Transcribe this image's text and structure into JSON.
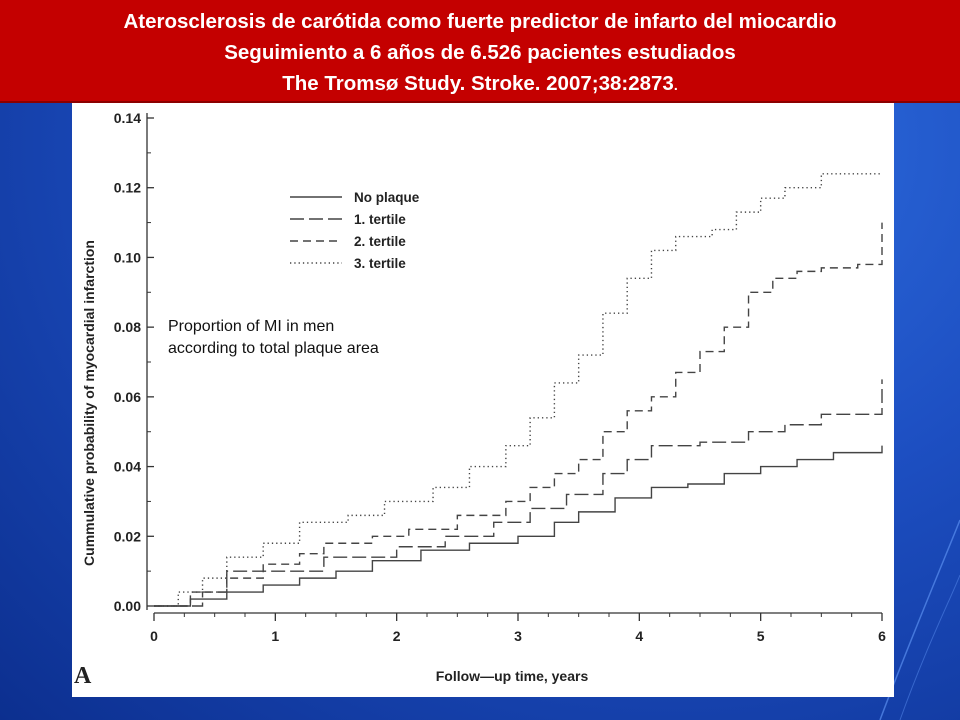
{
  "header": {
    "line1": "Aterosclerosis de carótida  como fuerte predictor de infarto del miocardio",
    "line2": "Seguimiento a 6 años de 6.526 pacientes estudiados",
    "line3": "The Tromsø Study. Stroke. 2007;38:2873",
    "line3_suffix": "."
  },
  "annotation": {
    "line1": "Proportion of MI in men",
    "line2": "according to total plaque area"
  },
  "panel_label": "A",
  "chart_data": {
    "type": "line",
    "step": true,
    "xlabel": "Follow—up time, years",
    "ylabel": "Cummulative probability of myocardial infarction",
    "xlim": [
      0,
      6
    ],
    "ylim": [
      0,
      0.14
    ],
    "xticks": [
      "0",
      "1",
      "2",
      "3",
      "4",
      "5",
      "6"
    ],
    "yticks": [
      "0.00",
      "0.02",
      "0.04",
      "0.06",
      "0.08",
      "0.10",
      "0.12",
      "0.14"
    ],
    "legend_position": "top-left",
    "series": [
      {
        "name": "No plaque",
        "style": "solid",
        "points": [
          [
            0,
            0
          ],
          [
            0.3,
            0.002
          ],
          [
            0.6,
            0.004
          ],
          [
            0.9,
            0.006
          ],
          [
            1.2,
            0.008
          ],
          [
            1.5,
            0.01
          ],
          [
            1.8,
            0.013
          ],
          [
            2.2,
            0.016
          ],
          [
            2.6,
            0.018
          ],
          [
            3.0,
            0.02
          ],
          [
            3.3,
            0.024
          ],
          [
            3.5,
            0.027
          ],
          [
            3.8,
            0.031
          ],
          [
            4.1,
            0.034
          ],
          [
            4.4,
            0.035
          ],
          [
            4.7,
            0.038
          ],
          [
            5.0,
            0.04
          ],
          [
            5.3,
            0.042
          ],
          [
            5.6,
            0.044
          ],
          [
            6.0,
            0.046
          ]
        ]
      },
      {
        "name": "1. tertile",
        "style": "longdash",
        "points": [
          [
            0,
            0
          ],
          [
            0.4,
            0.004
          ],
          [
            0.6,
            0.01
          ],
          [
            1.0,
            0.01
          ],
          [
            1.4,
            0.014
          ],
          [
            2.0,
            0.017
          ],
          [
            2.4,
            0.02
          ],
          [
            2.8,
            0.024
          ],
          [
            3.1,
            0.028
          ],
          [
            3.4,
            0.032
          ],
          [
            3.7,
            0.038
          ],
          [
            3.9,
            0.042
          ],
          [
            4.1,
            0.046
          ],
          [
            4.5,
            0.047
          ],
          [
            4.9,
            0.05
          ],
          [
            5.2,
            0.052
          ],
          [
            5.5,
            0.055
          ],
          [
            6.0,
            0.056
          ],
          [
            6.0,
            0.065
          ]
        ]
      },
      {
        "name": "2. tertile",
        "style": "shortdash",
        "points": [
          [
            0,
            0
          ],
          [
            0.3,
            0.004
          ],
          [
            0.6,
            0.008
          ],
          [
            0.9,
            0.012
          ],
          [
            1.2,
            0.015
          ],
          [
            1.4,
            0.018
          ],
          [
            1.8,
            0.02
          ],
          [
            2.1,
            0.022
          ],
          [
            2.5,
            0.026
          ],
          [
            2.9,
            0.03
          ],
          [
            3.1,
            0.034
          ],
          [
            3.3,
            0.038
          ],
          [
            3.5,
            0.042
          ],
          [
            3.7,
            0.05
          ],
          [
            3.9,
            0.056
          ],
          [
            4.1,
            0.06
          ],
          [
            4.3,
            0.067
          ],
          [
            4.5,
            0.073
          ],
          [
            4.7,
            0.08
          ],
          [
            4.9,
            0.09
          ],
          [
            5.1,
            0.094
          ],
          [
            5.3,
            0.096
          ],
          [
            5.5,
            0.097
          ],
          [
            5.8,
            0.098
          ],
          [
            6.0,
            0.11
          ]
        ]
      },
      {
        "name": "3. tertile",
        "style": "dotted",
        "points": [
          [
            0,
            0
          ],
          [
            0.2,
            0.004
          ],
          [
            0.4,
            0.008
          ],
          [
            0.6,
            0.014
          ],
          [
            0.9,
            0.018
          ],
          [
            1.2,
            0.024
          ],
          [
            1.6,
            0.026
          ],
          [
            1.9,
            0.03
          ],
          [
            2.3,
            0.034
          ],
          [
            2.6,
            0.04
          ],
          [
            2.9,
            0.046
          ],
          [
            3.1,
            0.054
          ],
          [
            3.3,
            0.064
          ],
          [
            3.5,
            0.072
          ],
          [
            3.7,
            0.084
          ],
          [
            3.9,
            0.094
          ],
          [
            4.1,
            0.102
          ],
          [
            4.3,
            0.106
          ],
          [
            4.6,
            0.108
          ],
          [
            4.8,
            0.113
          ],
          [
            5.0,
            0.117
          ],
          [
            5.2,
            0.12
          ],
          [
            5.5,
            0.124
          ],
          [
            6.0,
            0.124
          ]
        ]
      }
    ]
  }
}
